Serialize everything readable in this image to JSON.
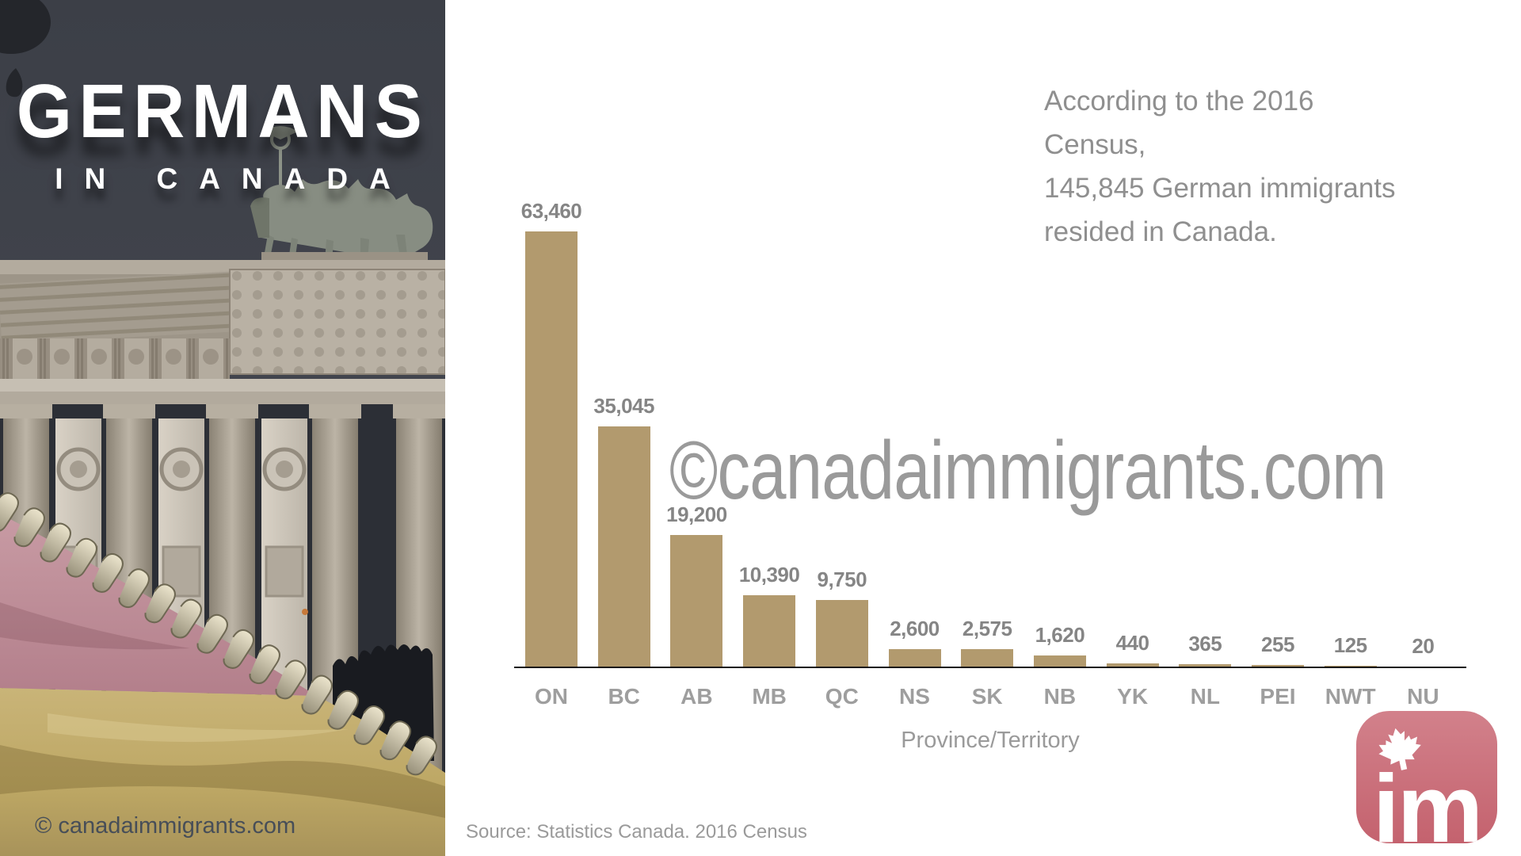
{
  "left_panel": {
    "title_line1": "GERMANS",
    "title_line2": "IN CANADA",
    "copyright": "© canadaimmigrants.com"
  },
  "intro": {
    "line1": "According to the 2016 Census,",
    "line2": "145,845 German immigrants",
    "line3": "resided in Canada."
  },
  "watermark": "©canadaimmigrants.com",
  "chart_data": {
    "type": "bar",
    "categories": [
      "ON",
      "BC",
      "AB",
      "MB",
      "QC",
      "NS",
      "SK",
      "NB",
      "YK",
      "NL",
      "PEI",
      "NWT",
      "NU"
    ],
    "values": [
      63460,
      35045,
      19200,
      10390,
      9750,
      2600,
      2575,
      1620,
      440,
      365,
      255,
      125,
      20
    ],
    "value_labels": [
      "63,460",
      "35,045",
      "19,200",
      "10,390",
      "9,750",
      "2,600",
      "2,575",
      "1,620",
      "440",
      "365",
      "255",
      "125",
      "20"
    ],
    "xlabel": "Province/Territory",
    "ylim": [
      0,
      63460
    ],
    "grid": false,
    "legend": "none",
    "bar_color": "#b29a6e"
  },
  "source": "Source: Statistics Canada. 2016 Census",
  "logo": {
    "text": "im"
  }
}
